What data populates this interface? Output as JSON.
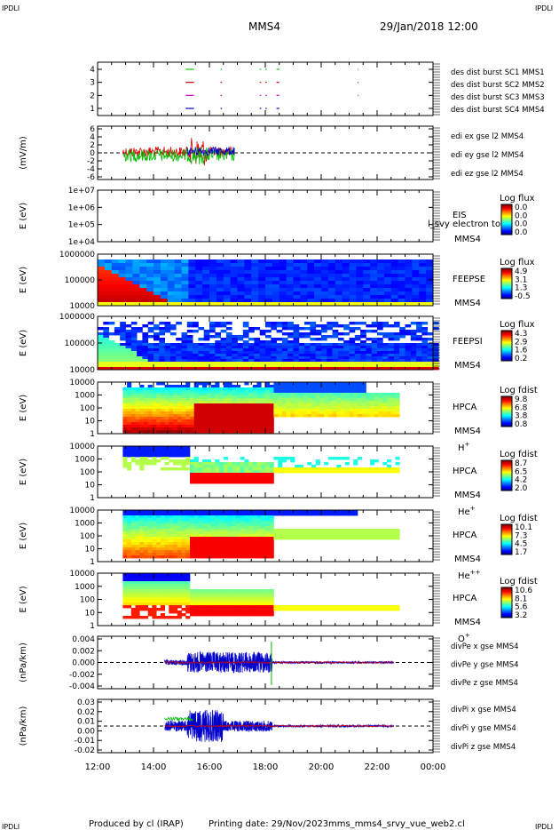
{
  "header": {
    "corner_left": "IPDLI",
    "corner_right": "IPDLI",
    "spacecraft": "MMS4",
    "date": "29/Jan/2018 12:00"
  },
  "footer": {
    "credit": "Produced by cl (IRAP)",
    "printing": "Printing date: 29/Nov/2023",
    "filename": "mms_mms4_srvy_vue_web2.cl",
    "corner_left": "IPDLI",
    "corner_right": "IPDLI"
  },
  "colors": {
    "red": "#dd0000",
    "green": "#00cc00",
    "blue": "#0000cc",
    "magenta": "#cc00cc",
    "yellow": "#dddd00"
  },
  "chart_data": [
    {
      "id": "burst",
      "type": "scatter",
      "ylim": [
        0.6,
        4.4
      ],
      "yticks": [
        "1",
        "2",
        "3",
        "4"
      ],
      "legend": [
        {
          "label": "des dist burst SC1 MMS1",
          "color": "#0000cc"
        },
        {
          "label": "des dist burst SC2 MMS2",
          "color": "#cc00cc"
        },
        {
          "label": "des dist burst SC3 MMS3",
          "color": "#cc0000"
        },
        {
          "label": "des dist burst SC4 MMS4",
          "color": "#00cc00"
        }
      ]
    },
    {
      "id": "edi",
      "type": "line",
      "ylabel": "(mV/m)",
      "ylim": [
        -6,
        6
      ],
      "yticks": [
        "-6",
        "-4",
        "-2",
        "0",
        "2",
        "4",
        "6"
      ],
      "legend": [
        {
          "label": "edi ex gse l2 MMS4",
          "color": "#dd0000"
        },
        {
          "label": "edi ey gse l2 MMS4",
          "color": "#00bb00"
        },
        {
          "label": "edi ez gse l2 MMS4",
          "color": "#0000cc"
        }
      ]
    },
    {
      "id": "eis",
      "type": "heatmap",
      "ylabel": "E (eV)",
      "yticks": [
        "1e+04",
        "1e+05",
        "1e+06",
        "1e+07"
      ],
      "name1": "EIS",
      "name2": "MMS4",
      "extra": "l_svy electron to",
      "cb_title": "Log flux",
      "cb_ticks": [
        "0.0",
        "0.0",
        "0.0",
        "0.0"
      ]
    },
    {
      "id": "feeps_e",
      "type": "heatmap",
      "ylabel": "E (eV)",
      "yticks": [
        "10000",
        "100000",
        "1000000"
      ],
      "name1": "FEEPSE",
      "name2": "MMS4",
      "cb_title": "Log flux",
      "cb_ticks": [
        "4.9",
        "3.1",
        "1.3",
        "-0.5"
      ]
    },
    {
      "id": "feeps_i",
      "type": "heatmap",
      "ylabel": "E (eV)",
      "yticks": [
        "10000",
        "100000",
        "1000000"
      ],
      "name1": "FEEPSI",
      "name2": "MMS4",
      "cb_title": "Log flux",
      "cb_ticks": [
        "4.3",
        "2.9",
        "1.6",
        "0.2"
      ]
    },
    {
      "id": "hpca_h",
      "type": "heatmap",
      "ylabel": "E (eV)",
      "yticks": [
        "1",
        "10",
        "100",
        "1000",
        "10000"
      ],
      "name1": "HPCA",
      "name2": "MMS4",
      "species": "H",
      "charge": "+",
      "cb_title": "Log fdist",
      "cb_ticks": [
        "9.8",
        "6.8",
        "3.8",
        "0.8"
      ]
    },
    {
      "id": "hpca_he",
      "type": "heatmap",
      "ylabel": "E (eV)",
      "yticks": [
        "1",
        "10",
        "100",
        "1000",
        "10000"
      ],
      "name1": "HPCA",
      "name2": "MMS4",
      "species": "He",
      "charge": "+",
      "cb_title": "Log fdist",
      "cb_ticks": [
        "8.7",
        "6.5",
        "4.2",
        "2.0"
      ]
    },
    {
      "id": "hpca_hepp",
      "type": "heatmap",
      "ylabel": "E (eV)",
      "yticks": [
        "1",
        "10",
        "100",
        "1000",
        "10000"
      ],
      "name1": "HPCA",
      "name2": "MMS4",
      "species": "He",
      "charge": "++",
      "cb_title": "Log fdist",
      "cb_ticks": [
        "10.1",
        "7.3",
        "4.5",
        "1.7"
      ]
    },
    {
      "id": "hpca_o",
      "type": "heatmap",
      "ylabel": "E (eV)",
      "yticks": [
        "1",
        "10",
        "100",
        "1000",
        "10000"
      ],
      "name1": "HPCA",
      "name2": "MMS4",
      "species": "O",
      "charge": "+",
      "cb_title": "Log fdist",
      "cb_ticks": [
        "10.6",
        "8.1",
        "5.6",
        "3.2"
      ]
    },
    {
      "id": "divpe",
      "type": "line",
      "ylabel": "(nPa/km)",
      "ylim": [
        -0.004,
        0.004
      ],
      "yticks": [
        "-0.004",
        "-0.002",
        "0.000",
        "0.002",
        "0.004"
      ],
      "legend": [
        {
          "label": "divPe x gse MMS4",
          "color": "#dd0000"
        },
        {
          "label": "divPe y gse MMS4",
          "color": "#00bb00"
        },
        {
          "label": "divPe z gse MMS4",
          "color": "#0000cc"
        }
      ]
    },
    {
      "id": "divpi",
      "type": "line",
      "ylabel": "(nPa/km)",
      "ylim": [
        -0.02,
        0.03
      ],
      "yticks": [
        "-0.02",
        "-0.01",
        "0.00",
        "0.01",
        "0.02",
        "0.03"
      ],
      "legend": [
        {
          "label": "divPi x gse MMS4",
          "color": "#dd0000"
        },
        {
          "label": "divPi y gse MMS4",
          "color": "#00bb00"
        },
        {
          "label": "divPi z gse MMS4",
          "color": "#0000cc"
        }
      ]
    }
  ],
  "time_axis": {
    "start": "12:00",
    "end": "00:00",
    "ticks": [
      "12:00",
      "14:00",
      "16:00",
      "18:00",
      "20:00",
      "22:00",
      "00:00"
    ]
  }
}
